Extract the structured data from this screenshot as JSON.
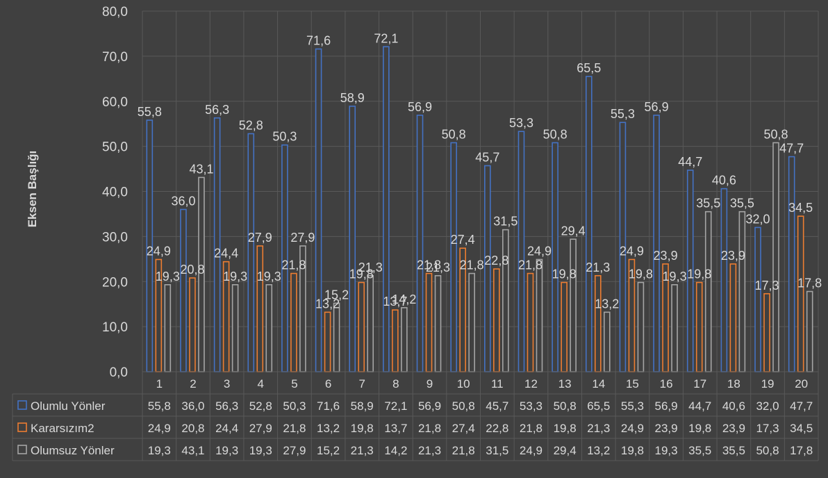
{
  "chart_data": {
    "type": "bar",
    "ylabel": "Eksen Başlığı",
    "ylim": [
      0,
      80
    ],
    "yticks": [
      "0,0",
      "10,0",
      "20,0",
      "30,0",
      "40,0",
      "50,0",
      "60,0",
      "70,0",
      "80,0"
    ],
    "categories": [
      "1",
      "2",
      "3",
      "4",
      "5",
      "6",
      "7",
      "8",
      "9",
      "10",
      "11",
      "12",
      "13",
      "14",
      "15",
      "16",
      "17",
      "18",
      "19",
      "20"
    ],
    "grid": true,
    "legend": "data-table",
    "series": [
      {
        "name": "Olumlu Yönler",
        "color": "#4472c4",
        "values": [
          55.8,
          36.0,
          56.3,
          52.8,
          50.3,
          71.6,
          58.9,
          72.1,
          56.9,
          50.8,
          45.7,
          53.3,
          50.8,
          65.5,
          55.3,
          56.9,
          44.7,
          40.6,
          32.0,
          47.7
        ]
      },
      {
        "name": "Kararsızım2",
        "color": "#ed7d31",
        "values": [
          24.9,
          20.8,
          24.4,
          27.9,
          21.8,
          13.2,
          19.8,
          13.7,
          21.8,
          27.4,
          22.8,
          21.8,
          19.8,
          21.3,
          24.9,
          23.9,
          19.8,
          23.9,
          17.3,
          34.5
        ]
      },
      {
        "name": "Olumsuz Yönler",
        "color": "#a5a5a5",
        "values": [
          19.3,
          43.1,
          19.3,
          19.3,
          27.9,
          15.2,
          21.3,
          14.2,
          21.3,
          21.8,
          31.5,
          24.9,
          29.4,
          13.2,
          19.8,
          19.3,
          35.5,
          35.5,
          50.8,
          17.8
        ]
      }
    ]
  }
}
